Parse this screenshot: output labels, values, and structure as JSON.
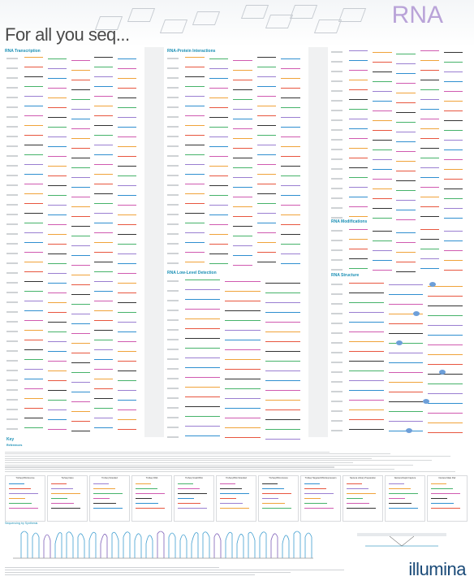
{
  "header": {
    "title": "For all you seq...",
    "subject": "RNA"
  },
  "sections": {
    "transcription": "RNA Transcription",
    "protein": "RNA-Protein Interactions",
    "lowlevel": "RNA Low-Level Detection",
    "modifications": "RNA Modifications",
    "structure": "RNA Structure",
    "key": "Key",
    "references": "References",
    "sequencing": "Sequencing by Synthesis"
  },
  "flowchart_titles": [
    "TruSeq RNA Exome",
    "TruSeq Nano",
    "TruSeq Stranded",
    "TruSeq DNA",
    "TruSeq Small RNA",
    "TruSeq RNA Stranded",
    "TruSeq RNA Access",
    "TruSeq Targeted RNA Expression",
    "Nextera Library Preparation",
    "Nextera Rapid Capture",
    "Nextera Mate Pair"
  ],
  "logo": "illumina",
  "colors": {
    "accent": "#1a8fb5",
    "rna": "#b9a3d8",
    "brand": "#1a4a78"
  }
}
